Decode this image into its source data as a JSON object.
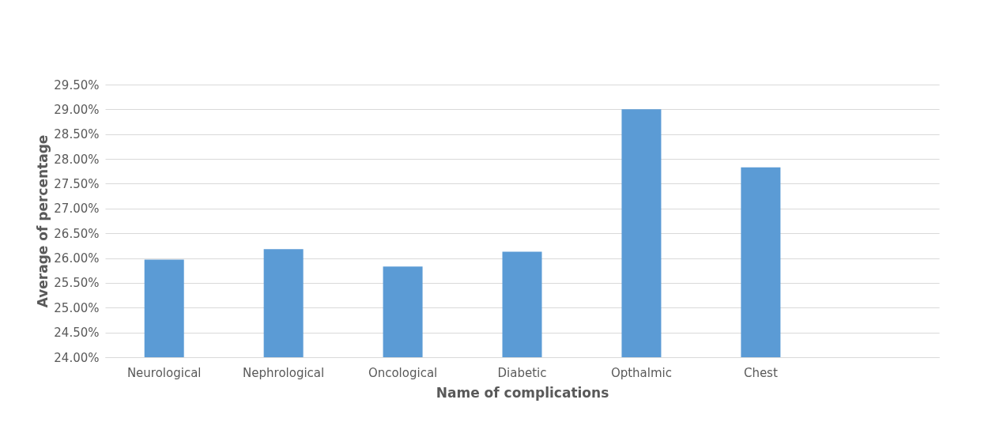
{
  "chart_data": {
    "type": "bar",
    "xlabel": "Name of complications",
    "ylabel": "Average of percentage",
    "categories": [
      "Neurological",
      "Nephrological",
      "Oncological",
      "Diabetic",
      "Opthalmic",
      "Chest",
      null
    ],
    "values": [
      25.97,
      26.18,
      25.83,
      26.13,
      29.0,
      27.83,
      null
    ],
    "color": "#5b9bd5",
    "ylim": [
      24.0,
      29.5
    ],
    "yticks": [
      {
        "value": 24.0,
        "label": "24.00%"
      },
      {
        "value": 24.5,
        "label": "24.50%"
      },
      {
        "value": 25.0,
        "label": "25.00%"
      },
      {
        "value": 25.5,
        "label": "25.50%"
      },
      {
        "value": 26.0,
        "label": "26.00%"
      },
      {
        "value": 26.5,
        "label": "26.50%"
      },
      {
        "value": 27.0,
        "label": "27.00%"
      },
      {
        "value": 27.5,
        "label": "27.50%"
      },
      {
        "value": 28.0,
        "label": "28.00%"
      },
      {
        "value": 28.5,
        "label": "28.50%"
      },
      {
        "value": 29.0,
        "label": "29.00%"
      },
      {
        "value": 29.5,
        "label": "29.50%"
      }
    ],
    "grid": "y"
  }
}
